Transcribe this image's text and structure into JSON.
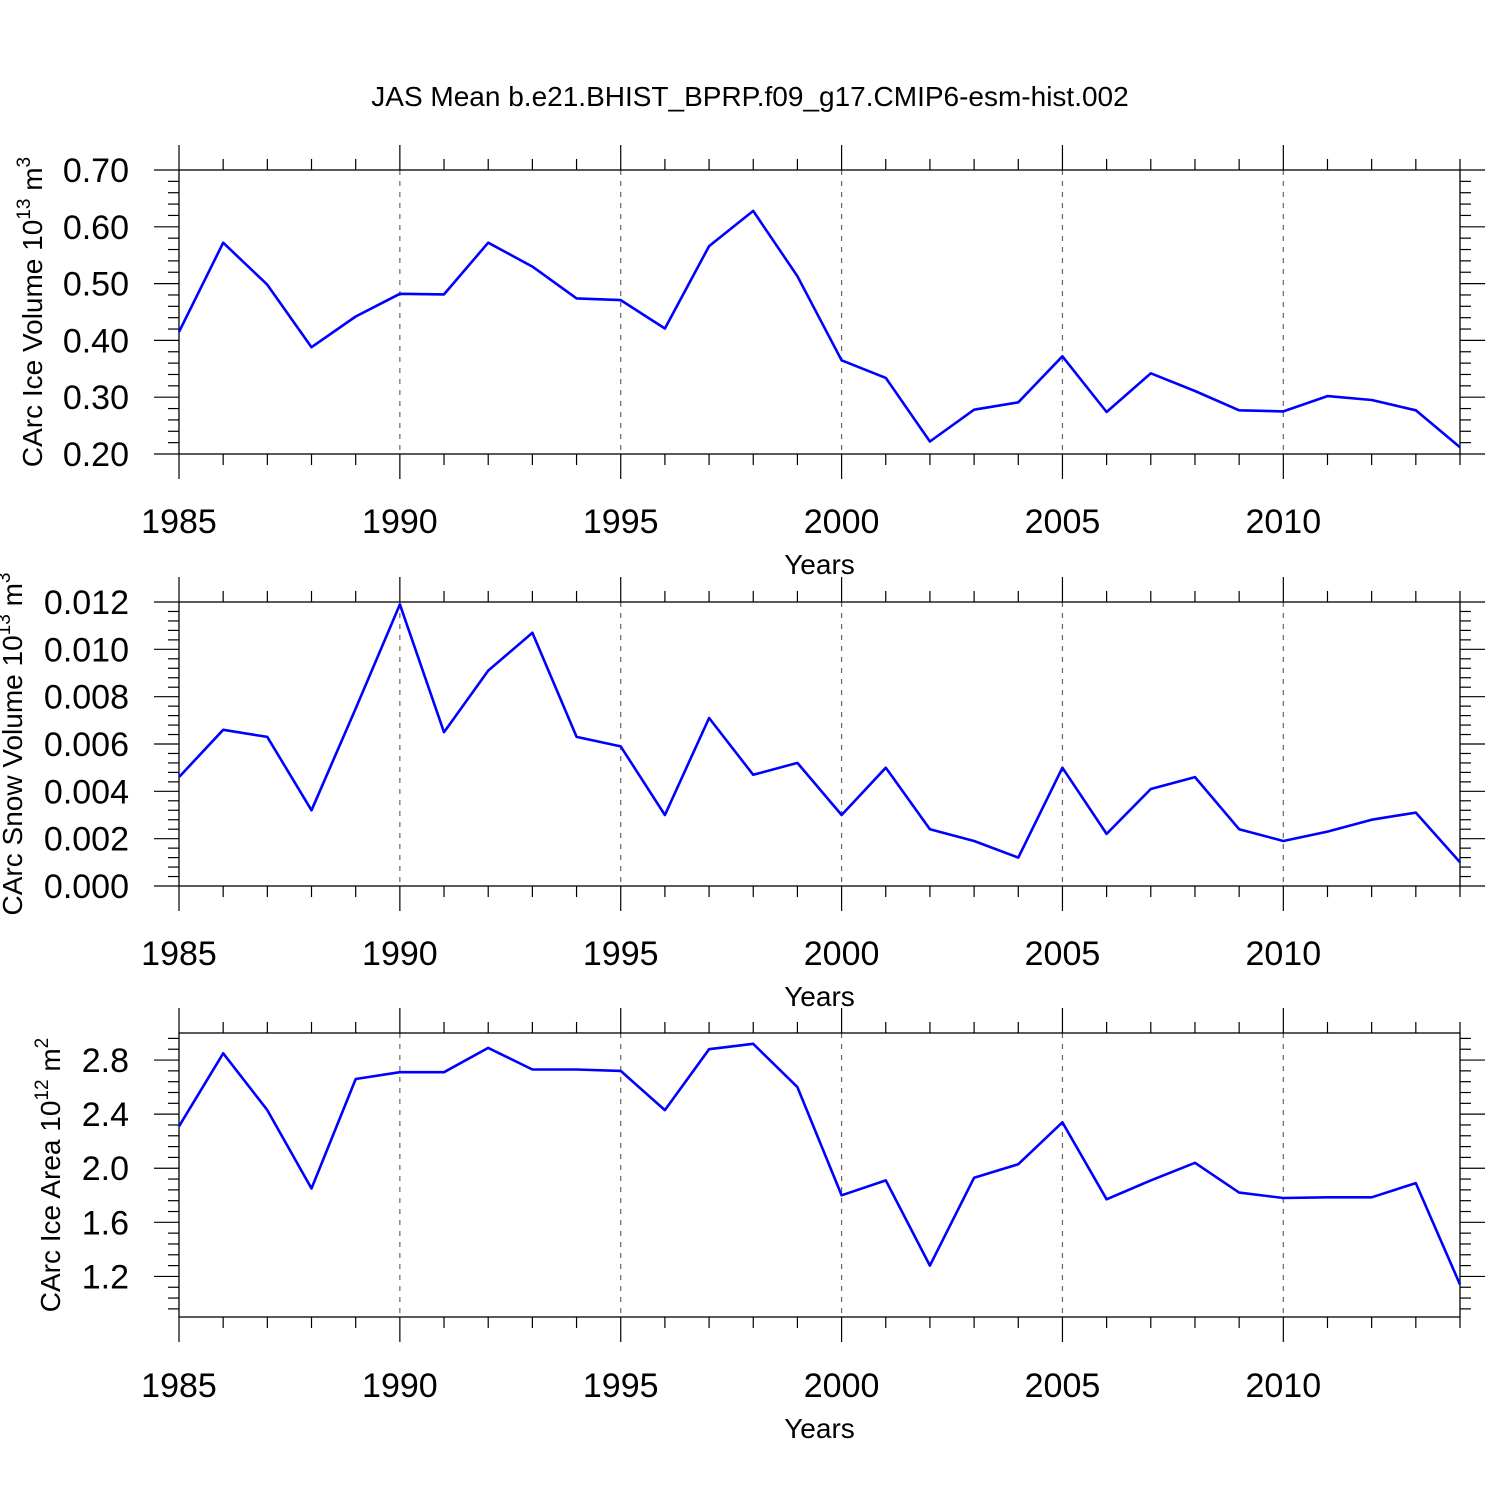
{
  "chart_data": [
    {
      "type": "line",
      "title": "JAS Mean b.e21.BHIST_BPRP.f09_g17.CMIP6-esm-hist.002",
      "xlabel": "Years",
      "ylabel": "CArc Ice Volume 10",
      "ylabel_exp": "13",
      "ylabel_unit": "m",
      "ylabel_unit_exp": "3",
      "xlim": [
        1985,
        2014
      ],
      "ylim": [
        0.2,
        0.7
      ],
      "xticks": [
        1985,
        1990,
        1995,
        2000,
        2005,
        2010
      ],
      "yticks": [
        "0.20",
        "0.30",
        "0.40",
        "0.50",
        "0.60",
        "0.70"
      ],
      "grid": "vertical dashed at major x ticks",
      "series": [
        {
          "name": "CArc Ice Volume",
          "color": "#0000ff",
          "x": [
            1985,
            1986,
            1987,
            1988,
            1989,
            1990,
            1991,
            1992,
            1993,
            1994,
            1995,
            1996,
            1997,
            1998,
            1999,
            2000,
            2001,
            2002,
            2003,
            2004,
            2005,
            2006,
            2007,
            2008,
            2009,
            2010,
            2011,
            2012,
            2013,
            2014
          ],
          "values": [
            0.415,
            0.572,
            0.498,
            0.388,
            0.442,
            0.482,
            0.481,
            0.572,
            0.53,
            0.474,
            0.471,
            0.421,
            0.566,
            0.628,
            0.513,
            0.365,
            0.334,
            0.222,
            0.278,
            0.291,
            0.372,
            0.274,
            0.342,
            0.311,
            0.277,
            0.275,
            0.302,
            0.295,
            0.277,
            0.212
          ]
        }
      ]
    },
    {
      "type": "line",
      "title": "",
      "xlabel": "Years",
      "ylabel": "CArc Snow Volume 10",
      "ylabel_exp": "13",
      "ylabel_unit": "m",
      "ylabel_unit_exp": "3",
      "xlim": [
        1985,
        2014
      ],
      "ylim": [
        0.0,
        0.012
      ],
      "xticks": [
        1985,
        1990,
        1995,
        2000,
        2005,
        2010
      ],
      "yticks": [
        "0.000",
        "0.002",
        "0.004",
        "0.006",
        "0.008",
        "0.010",
        "0.012"
      ],
      "grid": "vertical dashed at major x ticks",
      "series": [
        {
          "name": "CArc Snow Volume",
          "color": "#0000ff",
          "x": [
            1985,
            1986,
            1987,
            1988,
            1989,
            1990,
            1991,
            1992,
            1993,
            1994,
            1995,
            1996,
            1997,
            1998,
            1999,
            2000,
            2001,
            2002,
            2003,
            2004,
            2005,
            2006,
            2007,
            2008,
            2009,
            2010,
            2011,
            2012,
            2013,
            2014
          ],
          "values": [
            0.0046,
            0.0066,
            0.0063,
            0.0032,
            0.0075,
            0.0119,
            0.0065,
            0.0091,
            0.0107,
            0.0063,
            0.0059,
            0.003,
            0.0071,
            0.0047,
            0.0052,
            0.003,
            0.005,
            0.0024,
            0.0019,
            0.0012,
            0.005,
            0.0022,
            0.0041,
            0.0046,
            0.0024,
            0.0019,
            0.0023,
            0.0028,
            0.0031,
            0.001
          ]
        }
      ]
    },
    {
      "type": "line",
      "title": "",
      "xlabel": "Years",
      "ylabel": "CArc Ice Area 10",
      "ylabel_exp": "12",
      "ylabel_unit": "m",
      "ylabel_unit_exp": "2",
      "xlim": [
        1985,
        2014
      ],
      "ylim": [
        0.9,
        3.0
      ],
      "xticks": [
        1985,
        1990,
        1995,
        2000,
        2005,
        2010
      ],
      "yticks": [
        "1.2",
        "1.6",
        "2.0",
        "2.4",
        "2.8"
      ],
      "grid": "vertical dashed at major x ticks",
      "series": [
        {
          "name": "CArc Ice Area",
          "color": "#0000ff",
          "x": [
            1985,
            1986,
            1987,
            1988,
            1989,
            1990,
            1991,
            1992,
            1993,
            1994,
            1995,
            1996,
            1997,
            1998,
            1999,
            2000,
            2001,
            2002,
            2003,
            2004,
            2005,
            2006,
            2007,
            2008,
            2009,
            2010,
            2011,
            2012,
            2013,
            2014
          ],
          "values": [
            2.31,
            2.85,
            2.43,
            1.85,
            2.66,
            2.71,
            2.71,
            2.89,
            2.73,
            2.73,
            2.72,
            2.43,
            2.88,
            2.92,
            2.6,
            1.8,
            1.91,
            1.28,
            1.93,
            2.03,
            2.34,
            1.77,
            1.91,
            2.04,
            1.82,
            1.78,
            1.785,
            1.785,
            1.89,
            1.14
          ]
        }
      ]
    }
  ]
}
